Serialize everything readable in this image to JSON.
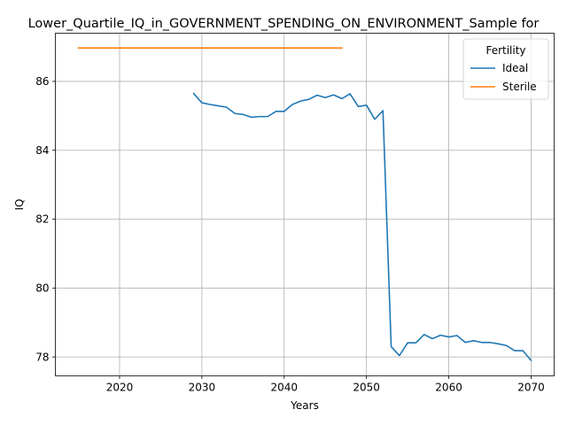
{
  "chart_data": {
    "type": "line",
    "title": "Lower_Quartile_IQ_in_GOVERNMENT_SPENDING_ON_ENVIRONMENT_Sample for",
    "xlabel": "Years",
    "ylabel": "IQ",
    "xlim": [
      2012.2,
      2072.8
    ],
    "ylim": [
      77.45,
      87.4
    ],
    "xticks": [
      2020,
      2030,
      2040,
      2050,
      2060,
      2070
    ],
    "yticks": [
      78,
      80,
      82,
      84,
      86
    ],
    "grid": true,
    "legend": {
      "title": "Fertility",
      "position": "top-right"
    },
    "series": [
      {
        "name": "Ideal",
        "color": "#1f77b4",
        "x": [
          2029,
          2030,
          2031,
          2032,
          2033,
          2034,
          2035,
          2036,
          2037,
          2038,
          2039,
          2040,
          2041,
          2042,
          2043,
          2044,
          2045,
          2046,
          2047,
          2048,
          2049,
          2050,
          2051,
          2052,
          2053,
          2054,
          2055,
          2056,
          2057,
          2058,
          2059,
          2060,
          2061,
          2062,
          2063,
          2064,
          2065,
          2066,
          2067,
          2068,
          2069,
          2070
        ],
        "y": [
          85.65,
          85.38,
          85.33,
          85.29,
          85.25,
          85.07,
          85.04,
          84.96,
          84.98,
          84.98,
          85.13,
          85.13,
          85.33,
          85.43,
          85.48,
          85.6,
          85.53,
          85.61,
          85.5,
          85.64,
          85.27,
          85.31,
          84.9,
          85.15,
          78.3,
          78.04,
          78.41,
          78.41,
          78.65,
          78.53,
          78.63,
          78.58,
          78.62,
          78.42,
          78.47,
          78.42,
          78.42,
          78.38,
          78.33,
          78.18,
          78.18,
          77.9
        ]
      },
      {
        "name": "Sterile",
        "color": "#ff7f0e",
        "x": [
          2015,
          2047
        ],
        "y": [
          86.97,
          86.97
        ]
      }
    ]
  }
}
